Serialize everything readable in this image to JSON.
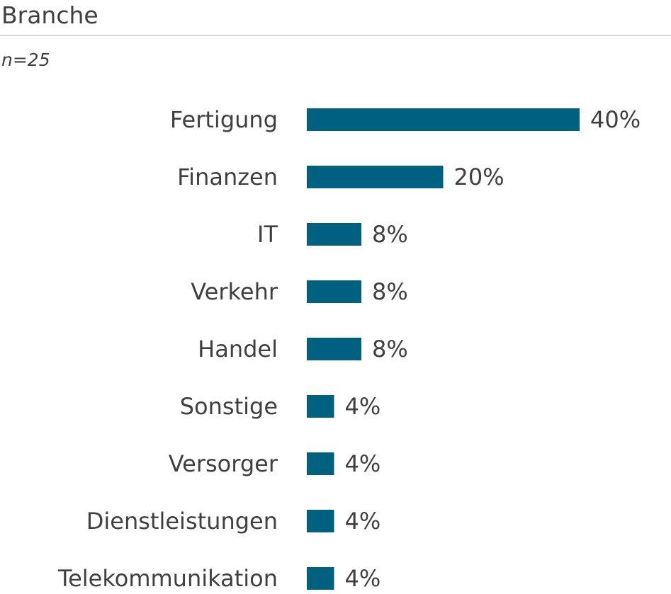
{
  "header": {
    "title": "Branche",
    "subtitle": "n=25"
  },
  "colors": {
    "bar": "#00607f",
    "text": "#404040",
    "rule": "#d9d9d9"
  },
  "chart_data": {
    "type": "bar",
    "orientation": "horizontal",
    "title": "Branche",
    "subtitle": "n=25",
    "categories": [
      "Fertigung",
      "Finanzen",
      "IT",
      "Verkehr",
      "Handel",
      "Sonstige",
      "Versorger",
      "Dienstleistungen",
      "Telekommunikation"
    ],
    "values": [
      40,
      20,
      8,
      8,
      8,
      4,
      4,
      4,
      4
    ],
    "value_labels": [
      "40%",
      "20%",
      "8%",
      "8%",
      "8%",
      "4%",
      "4%",
      "4%",
      "4%"
    ],
    "unit": "%",
    "xlim": [
      0,
      40
    ],
    "grid": false,
    "legend": "none"
  }
}
